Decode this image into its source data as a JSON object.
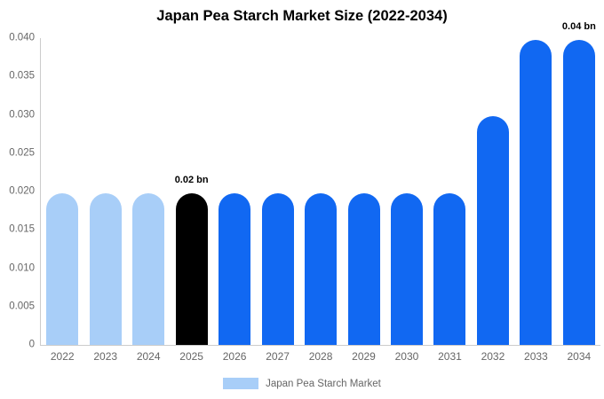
{
  "title": "Japan Pea Starch Market Size (2022-2034)",
  "legend": {
    "label": "Japan Pea Starch Market",
    "swatch_color": "#a8cef8"
  },
  "colors": {
    "light_blue": "#a8cef8",
    "blue": "#1168f2",
    "black": "#000000",
    "axis_line": "#cccccc",
    "tick_text": "#666666",
    "title_text": "#000000"
  },
  "chart_data": {
    "type": "bar",
    "title": "Japan Pea Starch Market Size (2022-2034)",
    "categories": [
      "2022",
      "2023",
      "2024",
      "2025",
      "2026",
      "2027",
      "2028",
      "2029",
      "2030",
      "2031",
      "2032",
      "2033",
      "2034"
    ],
    "values": [
      0.0198,
      0.0198,
      0.0198,
      0.0198,
      0.0198,
      0.0198,
      0.0198,
      0.0198,
      0.0198,
      0.0198,
      0.0298,
      0.0398,
      0.0398
    ],
    "bar_colors": [
      "#a8cef8",
      "#a8cef8",
      "#a8cef8",
      "#000000",
      "#1168f2",
      "#1168f2",
      "#1168f2",
      "#1168f2",
      "#1168f2",
      "#1168f2",
      "#1168f2",
      "#1168f2",
      "#1168f2"
    ],
    "annotations": [
      {
        "category": "2025",
        "text": "0.02 bn"
      },
      {
        "category": "2034",
        "text": "0.04 bn"
      }
    ],
    "xlabel": "",
    "ylabel": "",
    "ylim": [
      0,
      0.04
    ],
    "y_ticks": [
      "0.040",
      "0.035",
      "0.030",
      "0.025",
      "0.020",
      "0.015",
      "0.010",
      "0.005",
      "0"
    ],
    "grid": false,
    "legend_position": "bottom",
    "series_name": "Japan Pea Starch Market"
  }
}
